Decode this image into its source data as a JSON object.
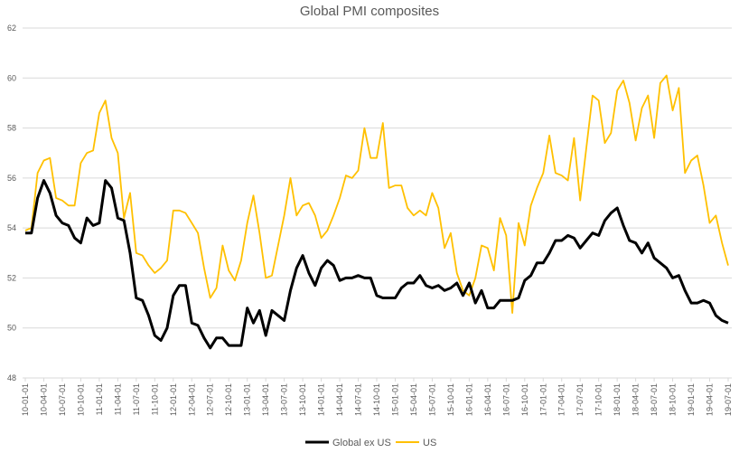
{
  "chart_data": {
    "type": "line",
    "title": "Global PMI composites",
    "xlabel": "",
    "ylabel": "",
    "ylim": [
      48,
      62
    ],
    "yticks": [
      48,
      50,
      52,
      54,
      56,
      58,
      60,
      62
    ],
    "grid": true,
    "legend": "bottom",
    "x_start": "10-01-01",
    "x_end": "19-07-01",
    "x_frequency": "monthly",
    "xtick_labels": [
      "10-01-01",
      "10-04-01",
      "10-07-01",
      "10-10-01",
      "11-01-01",
      "11-04-01",
      "11-07-01",
      "11-10-01",
      "12-01-01",
      "12-04-01",
      "12-07-01",
      "12-10-01",
      "13-01-01",
      "13-04-01",
      "13-07-01",
      "13-10-01",
      "14-01-01",
      "14-04-01",
      "14-07-01",
      "14-10-01",
      "15-01-01",
      "15-04-01",
      "15-07-01",
      "15-10-01",
      "16-01-01",
      "16-04-01",
      "16-07-01",
      "16-10-01",
      "17-01-01",
      "17-04-01",
      "17-07-01",
      "17-10-01",
      "18-01-01",
      "18-04-01",
      "18-07-01",
      "18-10-01",
      "19-01-01",
      "19-04-01",
      "19-07-01"
    ],
    "series": [
      {
        "name": "Global ex US",
        "color": "#000000",
        "values": [
          53.8,
          53.8,
          55.2,
          55.9,
          55.4,
          54.5,
          54.2,
          54.1,
          53.6,
          53.4,
          54.4,
          54.1,
          54.2,
          55.9,
          55.6,
          54.4,
          54.3,
          53.0,
          51.2,
          51.1,
          50.5,
          49.7,
          49.5,
          50.0,
          51.3,
          51.7,
          51.7,
          50.2,
          50.1,
          49.6,
          49.2,
          49.6,
          49.6,
          49.3,
          49.3,
          49.3,
          50.8,
          50.2,
          50.7,
          49.7,
          50.7,
          50.5,
          50.3,
          51.5,
          52.4,
          52.9,
          52.2,
          51.7,
          52.4,
          52.7,
          52.5,
          51.9,
          52.0,
          52.0,
          52.1,
          52.0,
          52.0,
          51.3,
          51.2,
          51.2,
          51.2,
          51.6,
          51.8,
          51.8,
          52.1,
          51.7,
          51.6,
          51.7,
          51.5,
          51.6,
          51.8,
          51.3,
          51.8,
          51.0,
          51.5,
          50.8,
          50.8,
          51.1,
          51.1,
          51.1,
          51.2,
          51.9,
          52.1,
          52.6,
          52.6,
          53.0,
          53.5,
          53.5,
          53.7,
          53.6,
          53.2,
          53.5,
          53.8,
          53.7,
          54.3,
          54.6,
          54.8,
          54.1,
          53.5,
          53.4,
          53.0,
          53.4,
          52.8,
          52.6,
          52.4,
          52.0,
          52.1,
          51.5,
          51.0,
          51.0,
          51.1,
          51.0,
          50.5,
          50.3,
          50.2
        ]
      },
      {
        "name": "US",
        "color": "#FFC000",
        "values": [
          53.9,
          54.0,
          56.2,
          56.7,
          56.8,
          55.2,
          55.1,
          54.9,
          54.9,
          56.6,
          57.0,
          57.1,
          58.6,
          59.1,
          57.6,
          57.0,
          54.4,
          55.4,
          53.0,
          52.9,
          52.5,
          52.2,
          52.4,
          52.7,
          54.7,
          54.7,
          54.6,
          54.2,
          53.8,
          52.4,
          51.2,
          51.6,
          53.3,
          52.3,
          51.9,
          52.7,
          54.2,
          55.3,
          53.8,
          52.0,
          52.1,
          53.3,
          54.5,
          56.0,
          54.5,
          54.9,
          55.0,
          54.5,
          53.6,
          53.9,
          54.5,
          55.2,
          56.1,
          56.0,
          56.3,
          58.0,
          56.8,
          56.8,
          58.2,
          55.6,
          55.7,
          55.7,
          54.8,
          54.5,
          54.7,
          54.5,
          55.4,
          54.8,
          53.2,
          53.8,
          52.2,
          51.5,
          51.3,
          52.0,
          53.3,
          53.2,
          52.3,
          54.4,
          53.7,
          50.6,
          54.2,
          53.3,
          54.9,
          55.6,
          56.2,
          57.7,
          56.2,
          56.1,
          55.9,
          57.6,
          55.1,
          57.2,
          59.3,
          59.1,
          57.4,
          57.8,
          59.5,
          59.9,
          59.0,
          57.5,
          58.8,
          59.3,
          57.6,
          59.8,
          60.1,
          58.7,
          59.6,
          56.2,
          56.7,
          56.9,
          55.7,
          54.2,
          54.5,
          53.4,
          52.5
        ]
      }
    ]
  }
}
